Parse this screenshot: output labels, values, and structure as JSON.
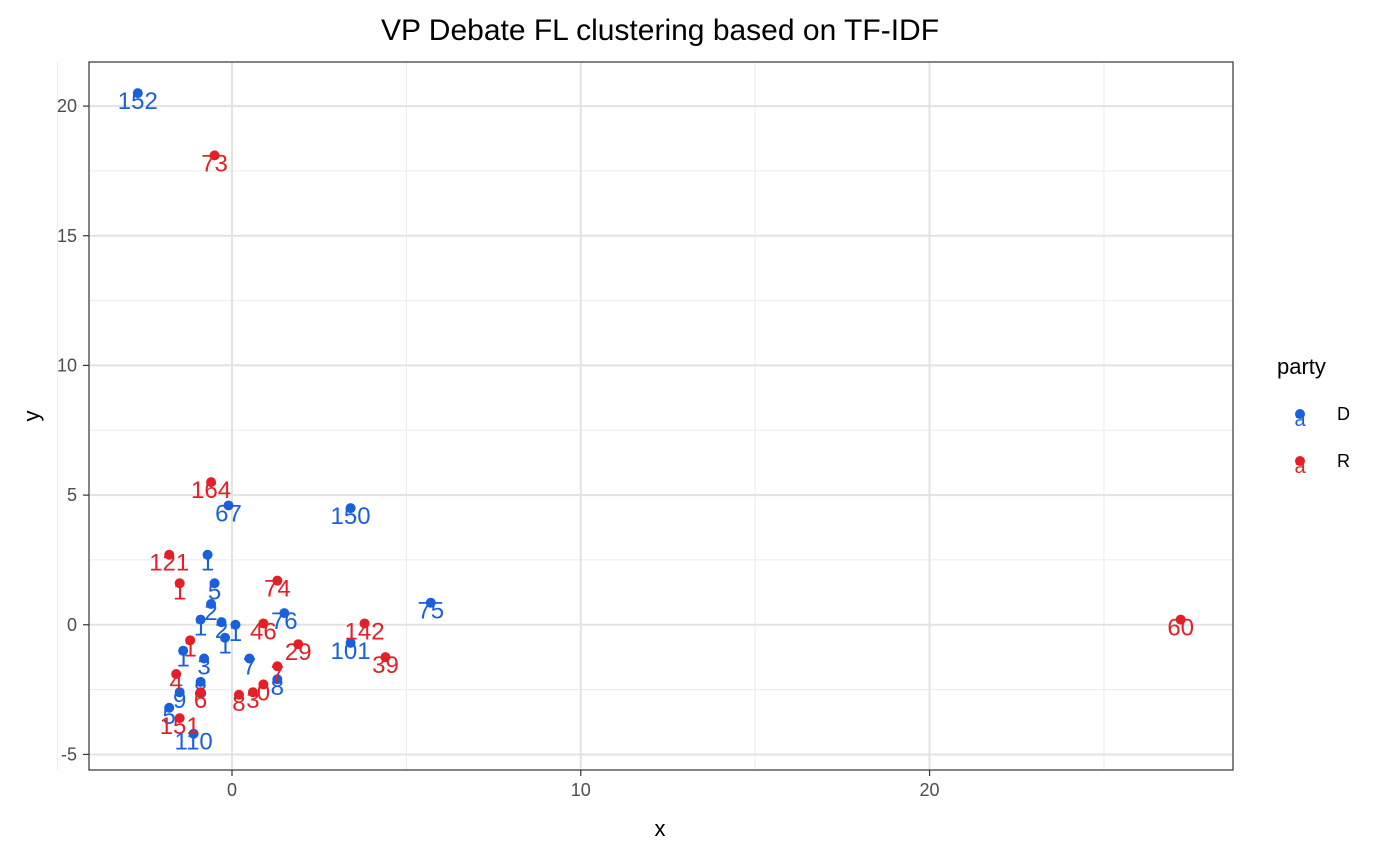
{
  "chart_data": {
    "type": "scatter",
    "title": "VP Debate FL clustering based on TF-IDF",
    "xlabel": "x",
    "ylabel": "y",
    "xlim": [
      -4.1,
      28.7
    ],
    "ylim": [
      -5.6,
      21.7
    ],
    "x_ticks": [
      0,
      10,
      20
    ],
    "x_minor_ticks": [
      -5,
      5,
      15,
      25
    ],
    "y_ticks": [
      -5,
      0,
      5,
      10,
      15,
      20
    ],
    "y_minor_ticks": [
      -2.5,
      2.5,
      7.5,
      12.5,
      17.5
    ],
    "grid": true,
    "legend": {
      "title": "party",
      "position": "right",
      "key_glyph": "a",
      "entries": [
        {
          "name": "D",
          "color": "#1a5fdc"
        },
        {
          "name": "R",
          "color": "#e32028"
        }
      ]
    },
    "series": [
      {
        "name": "D",
        "color": "#1a5fdc",
        "points": [
          {
            "x": -2.7,
            "y": 20.5,
            "label": "152"
          },
          {
            "x": -0.1,
            "y": 4.6,
            "label": "67"
          },
          {
            "x": 3.4,
            "y": 4.5,
            "label": "150"
          },
          {
            "x": 5.7,
            "y": 0.85,
            "label": "75"
          },
          {
            "x": 1.5,
            "y": 0.45,
            "label": "76"
          },
          {
            "x": 3.4,
            "y": -0.7,
            "label": "101"
          },
          {
            "x": -1.1,
            "y": -4.2,
            "label": "110"
          },
          {
            "x": -1.8,
            "y": -3.2,
            "label": "5"
          },
          {
            "x": -0.7,
            "y": 2.7,
            "label": "1"
          },
          {
            "x": -0.5,
            "y": 1.6,
            "label": "5"
          },
          {
            "x": -0.6,
            "y": 0.8,
            "label": "2"
          },
          {
            "x": -0.9,
            "y": 0.2,
            "label": "1"
          },
          {
            "x": -0.3,
            "y": 0.1,
            "label": "2"
          },
          {
            "x": 0.1,
            "y": 0.0,
            "label": "1"
          },
          {
            "x": -0.2,
            "y": -0.5,
            "label": "1"
          },
          {
            "x": -1.4,
            "y": -1.0,
            "label": "1"
          },
          {
            "x": -0.8,
            "y": -1.3,
            "label": "3"
          },
          {
            "x": 0.5,
            "y": -1.3,
            "label": "7"
          },
          {
            "x": 1.3,
            "y": -2.1,
            "label": "8"
          },
          {
            "x": -0.9,
            "y": -2.2,
            "label": "8"
          },
          {
            "x": -1.5,
            "y": -2.6,
            "label": "9"
          }
        ]
      },
      {
        "name": "R",
        "color": "#e32028",
        "points": [
          {
            "x": -0.5,
            "y": 18.1,
            "label": "73"
          },
          {
            "x": -0.6,
            "y": 5.5,
            "label": "164"
          },
          {
            "x": -1.8,
            "y": 2.7,
            "label": "121"
          },
          {
            "x": -1.5,
            "y": 1.6,
            "label": "1"
          },
          {
            "x": 1.3,
            "y": 1.7,
            "label": "74"
          },
          {
            "x": 0.9,
            "y": 0.05,
            "label": "46"
          },
          {
            "x": 3.8,
            "y": 0.05,
            "label": "142"
          },
          {
            "x": 1.9,
            "y": -0.75,
            "label": "29"
          },
          {
            "x": 4.4,
            "y": -1.25,
            "label": "39"
          },
          {
            "x": 27.2,
            "y": 0.2,
            "label": "60"
          },
          {
            "x": 1.3,
            "y": -1.6,
            "label": "7"
          },
          {
            "x": 0.9,
            "y": -2.3,
            "label": "0"
          },
          {
            "x": 0.6,
            "y": -2.6,
            "label": "3"
          },
          {
            "x": 0.2,
            "y": -2.7,
            "label": "8"
          },
          {
            "x": -1.2,
            "y": -0.6,
            "label": "1"
          },
          {
            "x": -1.6,
            "y": -1.9,
            "label": "4"
          },
          {
            "x": -0.9,
            "y": -2.6,
            "label": "6"
          },
          {
            "x": -1.5,
            "y": -3.6,
            "label": "151"
          }
        ]
      }
    ]
  }
}
